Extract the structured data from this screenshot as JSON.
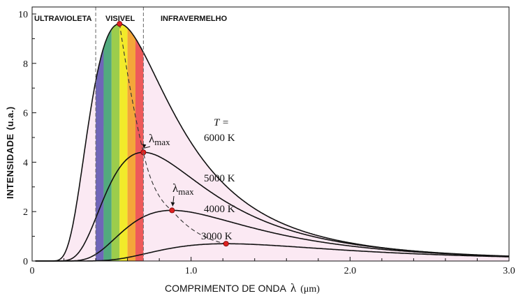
{
  "chart_data": {
    "type": "line",
    "xlabel": "COMPRIMENTO DE ONDA",
    "xlabel_symbol": "λ",
    "xlabel_unit": "(μm)",
    "ylabel": "INTENSIDADE",
    "ylabel_unit": "(u.a.)",
    "xlim": [
      0,
      3.0
    ],
    "ylim": [
      0,
      10
    ],
    "x_ticks": [
      "0",
      "1.0",
      "2.0",
      "3.0"
    ],
    "y_ticks": [
      "0",
      "2",
      "4",
      "6",
      "8",
      "10"
    ],
    "regions": [
      {
        "label": "ULTRAVIOLETA",
        "from": 0,
        "to": 0.4
      },
      {
        "label": "VISIVEL",
        "from": 0.4,
        "to": 0.7
      },
      {
        "label": "INFRAVERMELHO",
        "from": 0.7,
        "to": 3.0
      }
    ],
    "visible_band_colors": [
      "#6f66b8",
      "#52aa7e",
      "#9ccd4c",
      "#f2ea2a",
      "#f4a63a",
      "#ee5a5a"
    ],
    "fill_color": "#fbe9f3",
    "temperature_label": "T =",
    "lambda_max_label": "λ",
    "lambda_max_subscript": "max",
    "series": [
      {
        "name": "6000 K",
        "peak_x": 0.55,
        "peak_y": 9.6
      },
      {
        "name": "5000 K",
        "peak_x": 0.7,
        "peak_y": 4.4
      },
      {
        "name": "4000 K",
        "peak_x": 0.88,
        "peak_y": 2.05
      },
      {
        "name": "3000 K",
        "peak_x": 1.22,
        "peak_y": 0.7
      }
    ],
    "grid": false,
    "legend": "inline labels to the right of each curve"
  }
}
